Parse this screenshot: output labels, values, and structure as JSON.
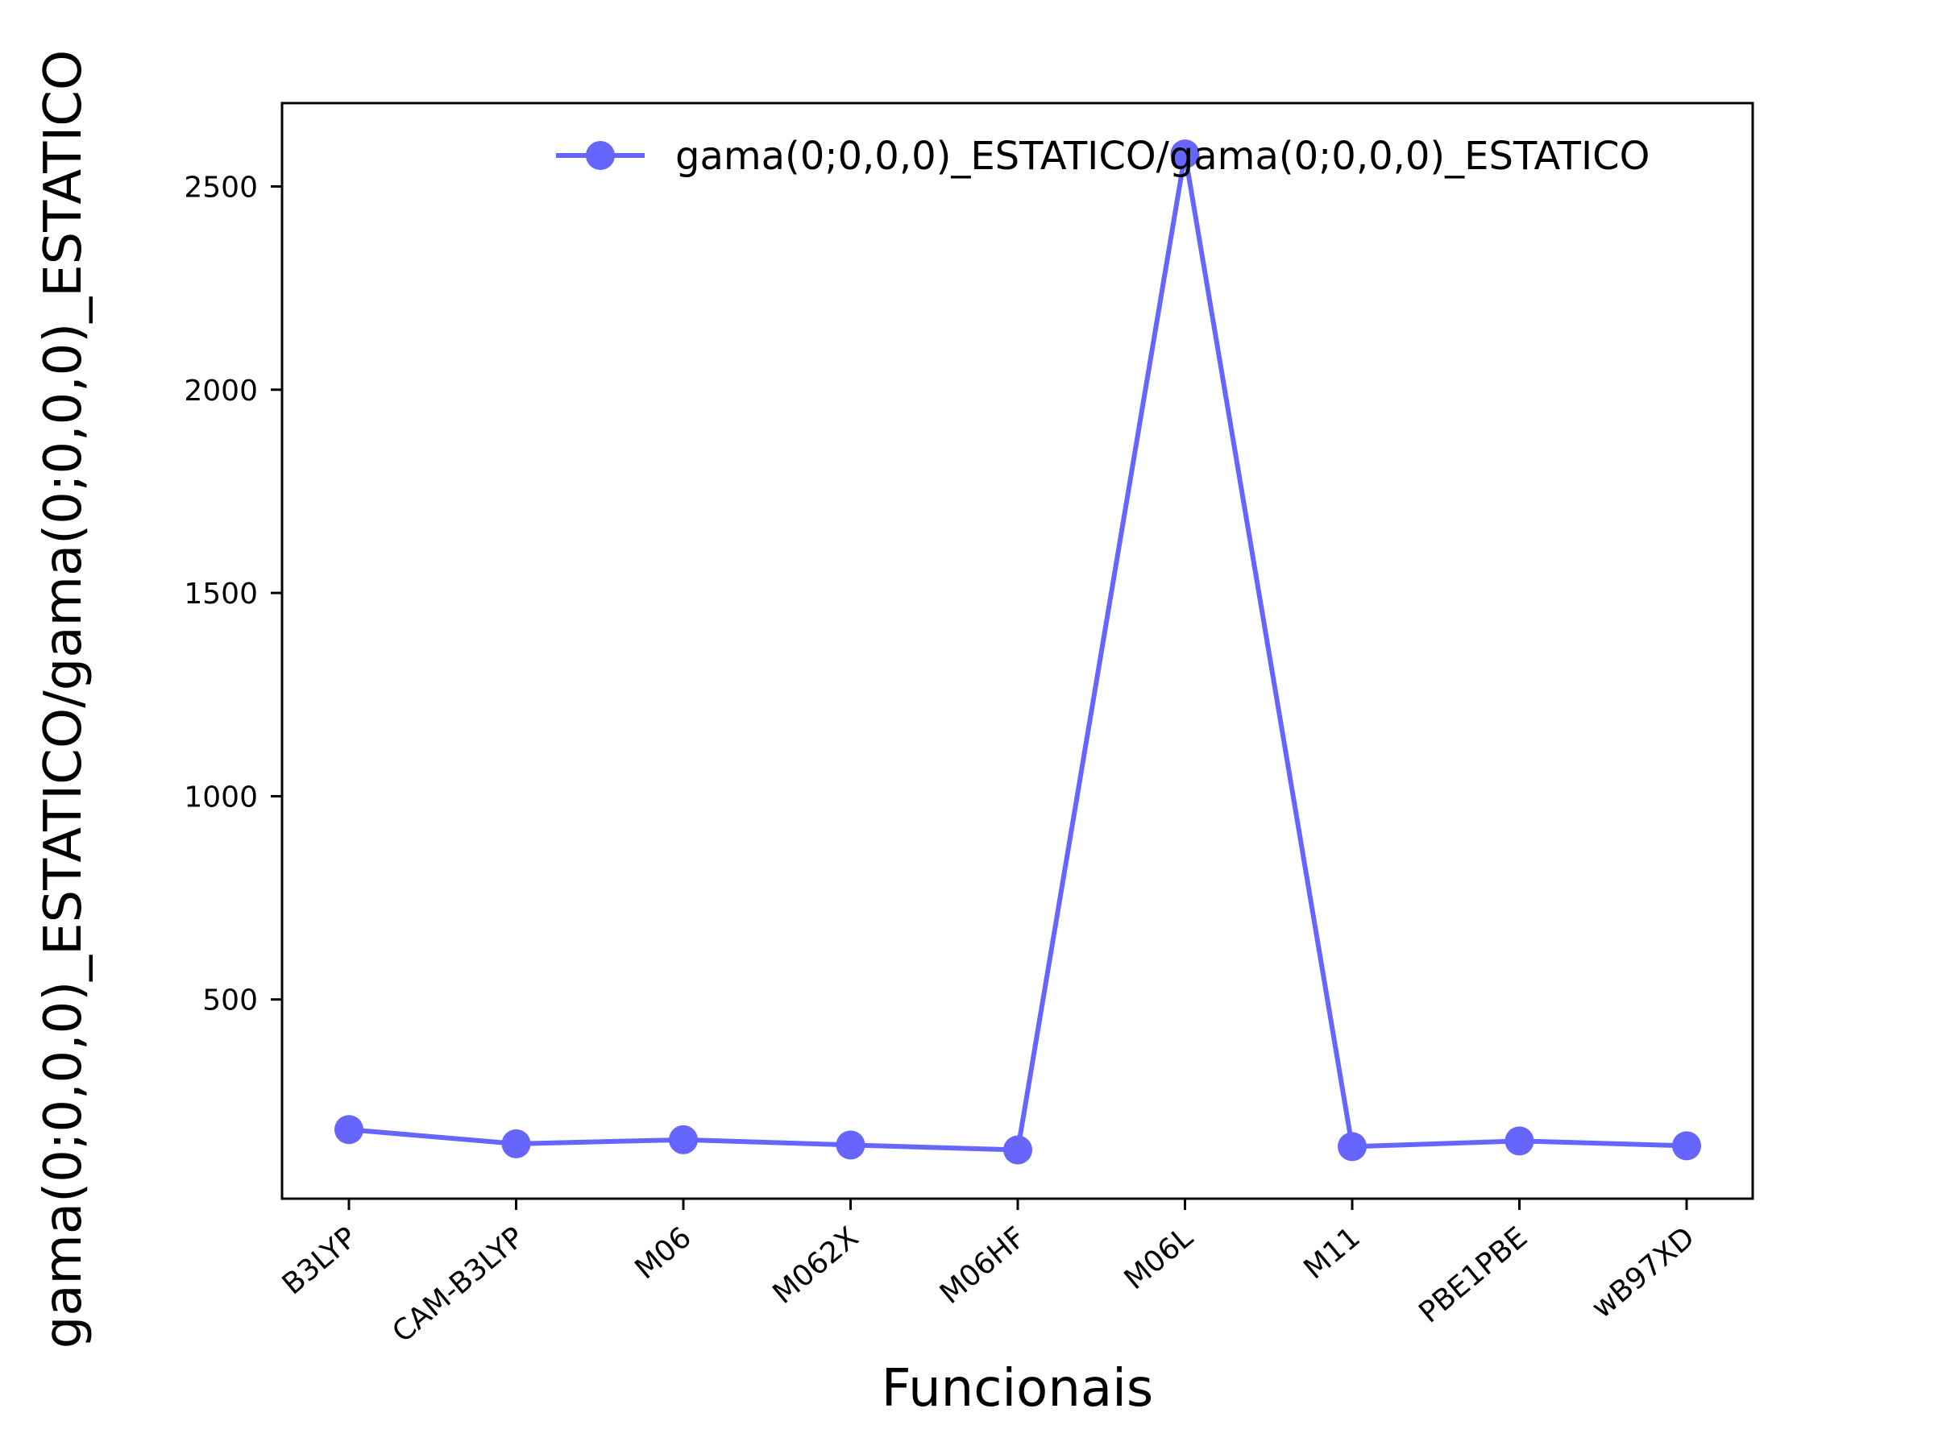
{
  "chart_data": {
    "type": "line",
    "title": "",
    "xlabel": "Funcionais",
    "ylabel": "gama(0;0,0,0)_ESTATICO/gama(0;0,0,0)_ESTATICO",
    "categories": [
      "B3LYP",
      "CAM-B3LYP",
      "M06",
      "M062X",
      "M06HF",
      "M06L",
      "M11",
      "PBE1PBE",
      "wB97XD"
    ],
    "series": [
      {
        "name": "gama(0;0,0,0)_ESTATICO/gama(0;0,0,0)_ESTATICO",
        "values": [
          180,
          145,
          155,
          142,
          130,
          2580,
          138,
          152,
          140
        ],
        "color": "#6666ff",
        "marker": "circle"
      }
    ],
    "y_ticks": [
      500,
      1000,
      1500,
      2000,
      2500
    ],
    "ylim": [
      10,
      2705
    ],
    "grid": false,
    "legend_position": "upper right"
  }
}
